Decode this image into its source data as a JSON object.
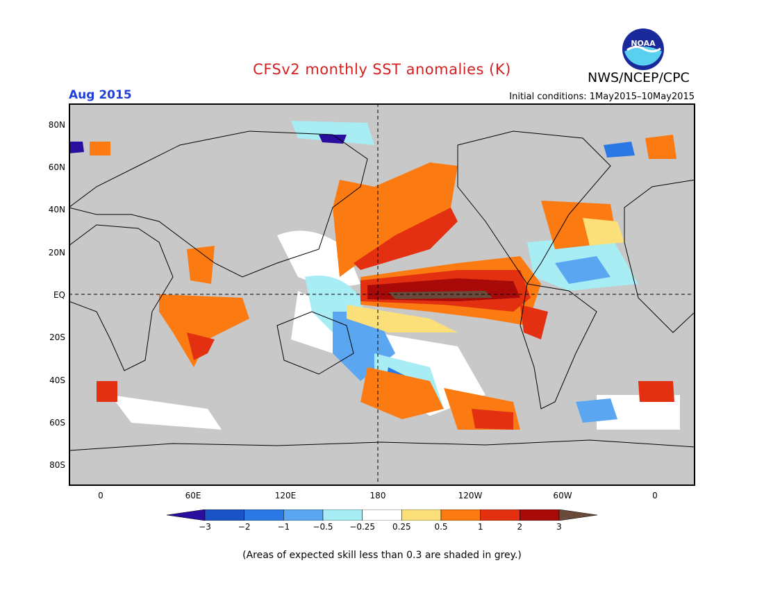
{
  "header": {
    "title": "CFSv2 monthly SST anomalies (K)",
    "organization": "NWS/NCEP/CPC",
    "valid_month": "Aug 2015",
    "initial_conditions": "Initial conditions: 1May2015–10May2015",
    "logo_text": "NOAA"
  },
  "colors": {
    "title": "#d42020",
    "valid_month": "#2040d8",
    "grey_low_skill": "#c8c8c8",
    "land_outline": "#000000"
  },
  "map": {
    "lat_labels": [
      "80N",
      "60N",
      "40N",
      "20N",
      "EQ",
      "20S",
      "40S",
      "60S",
      "80S"
    ],
    "lon_labels": [
      "0",
      "60E",
      "120E",
      "180",
      "120W",
      "60W",
      "0"
    ]
  },
  "colorbar": {
    "ticks": [
      "−3",
      "−2",
      "−1",
      "−0.5",
      "−0.25",
      "0.25",
      "0.5",
      "1",
      "2",
      "3"
    ],
    "colors": [
      "#2a0ea0",
      "#1a52c8",
      "#2a78e6",
      "#5aa6f0",
      "#a8ecf4",
      "#ffffff",
      "#fbe07a",
      "#fb7a12",
      "#e23010",
      "#a80a0a",
      "#6a4a3a"
    ]
  },
  "footer": {
    "note": "(Areas of expected skill less than 0.3 are shaded in grey.)"
  }
}
